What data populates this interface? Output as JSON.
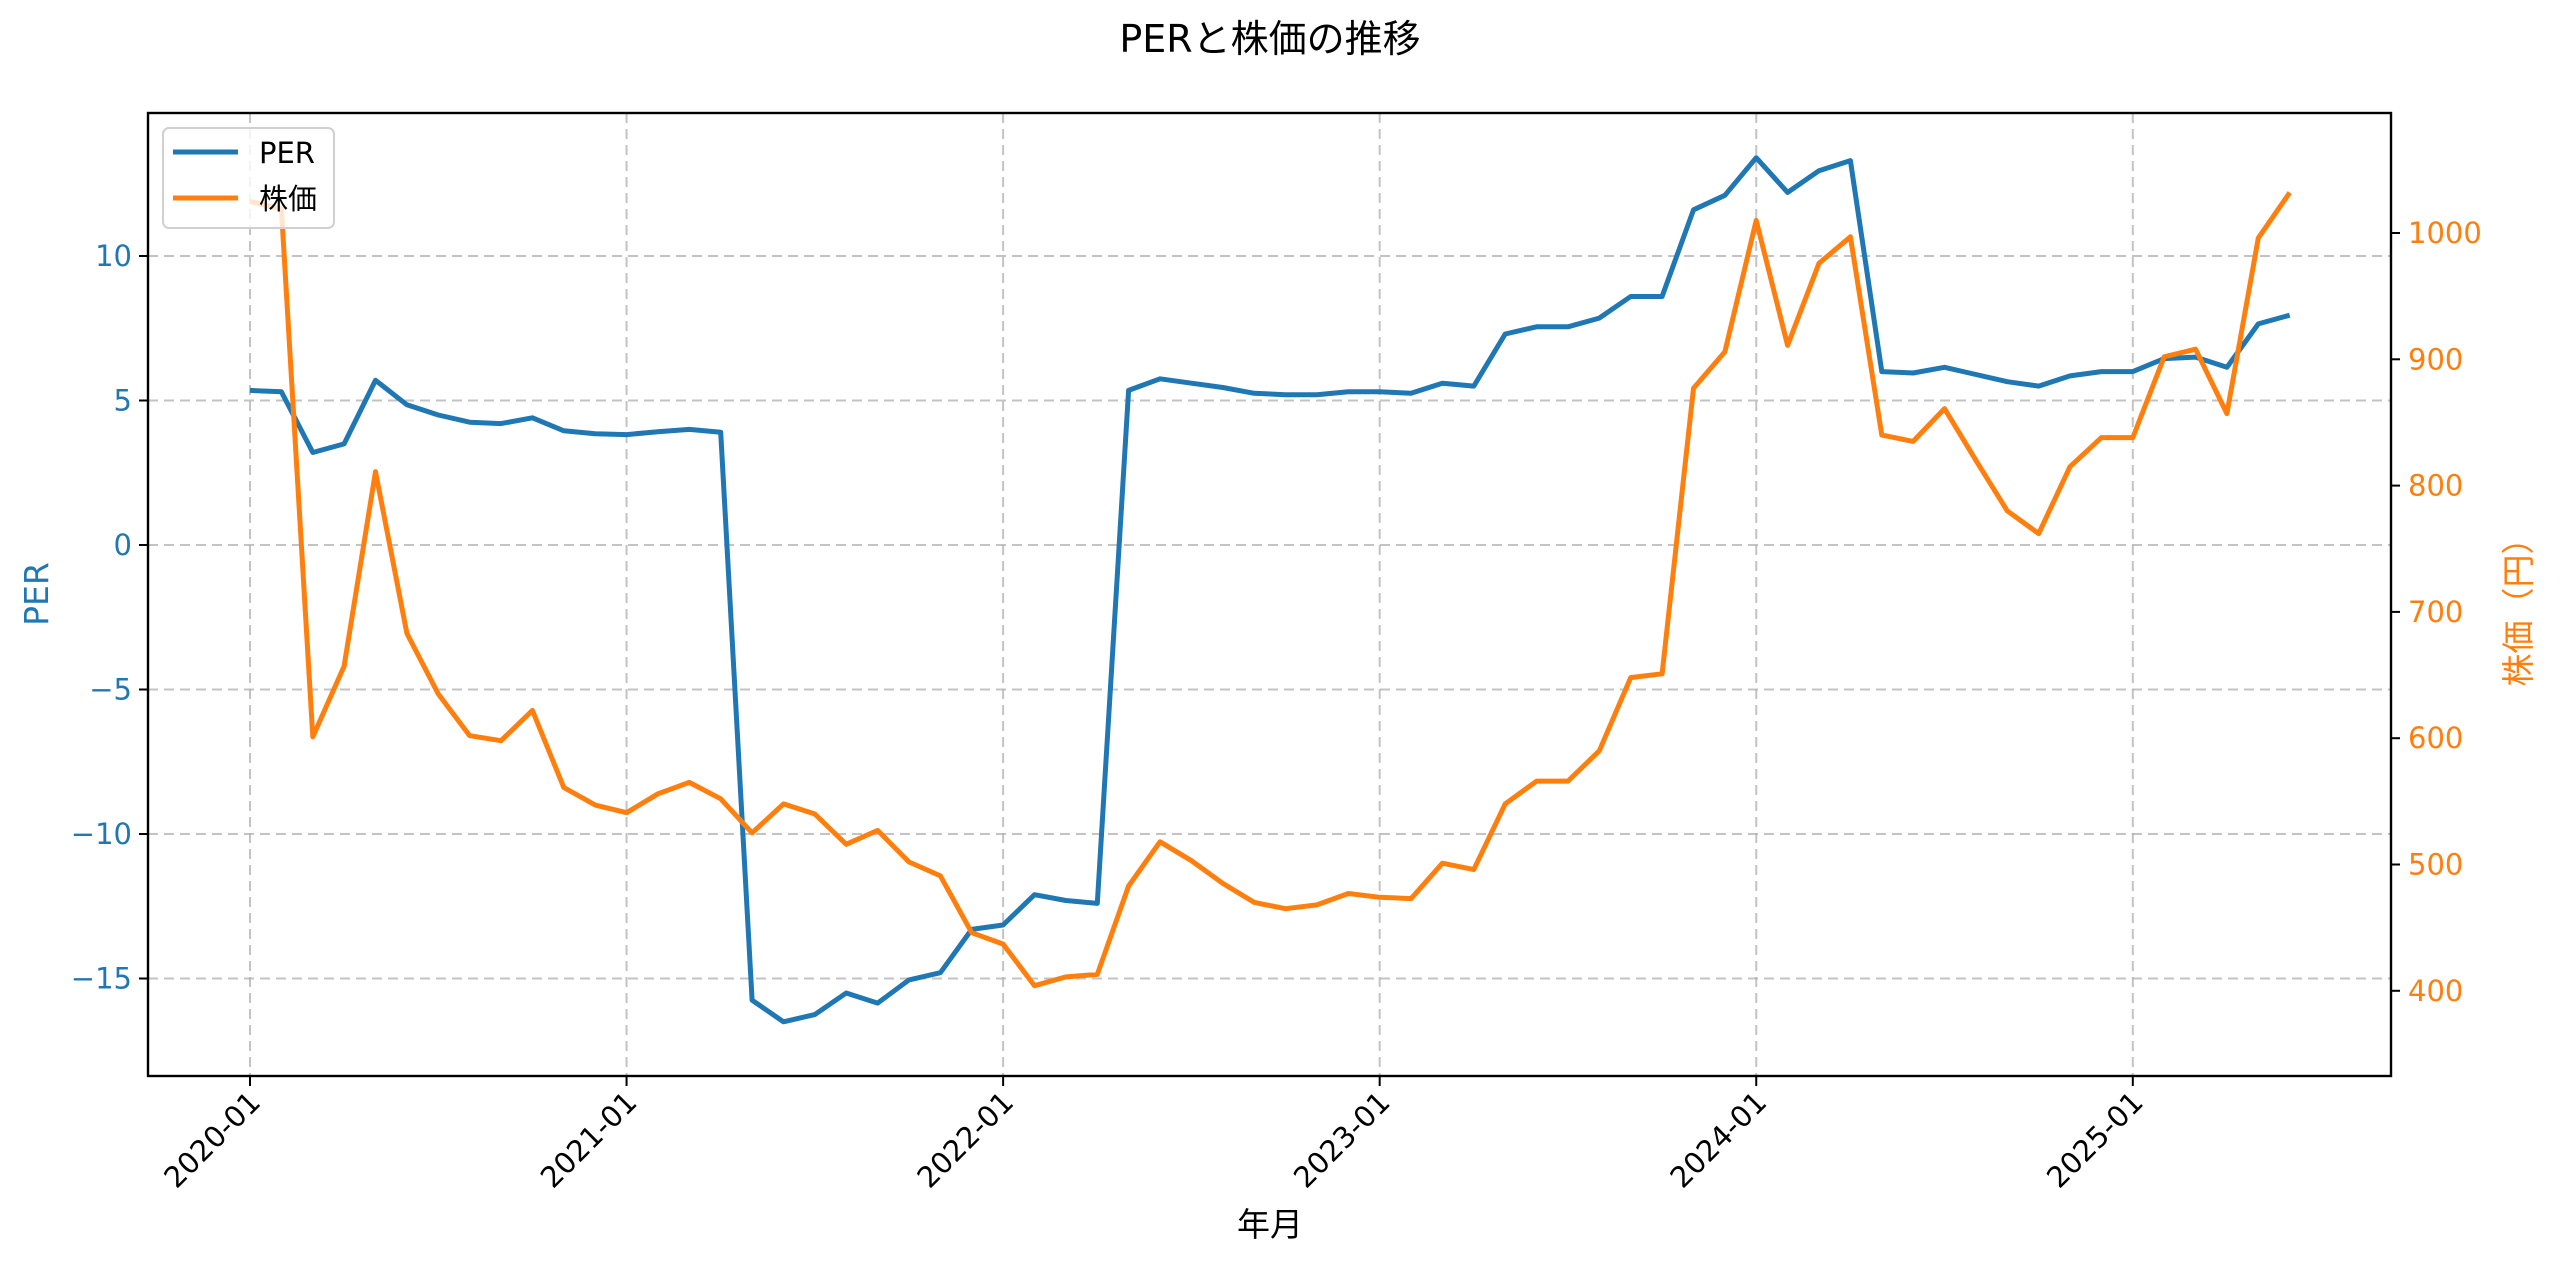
{
  "chart_data": {
    "type": "line",
    "title": "PERと株価の推移",
    "xlabel": "年月",
    "ylabel_left": "PER",
    "ylabel_right": "株価（円）",
    "x_tick_labels": [
      "2020-01",
      "2021-01",
      "2022-01",
      "2023-01",
      "2024-01",
      "2025-01"
    ],
    "y_left_ticks": [
      10,
      5,
      0,
      -5,
      -10,
      -15
    ],
    "y_left_tick_labels": [
      "10",
      "5",
      "0",
      "−5",
      "−10",
      "−15"
    ],
    "y_right_ticks": [
      1000,
      900,
      800,
      700,
      600,
      500,
      400
    ],
    "y_right_tick_labels": [
      "1000",
      "900",
      "800",
      "700",
      "600",
      "500",
      "400"
    ],
    "y_left_range": [
      -18.2,
      14.8
    ],
    "y_right_range": [
      333,
      1095
    ],
    "grid": true,
    "legend_position": "upper left",
    "x": [
      "2020-01",
      "2020-02",
      "2020-03",
      "2020-04",
      "2020-05",
      "2020-06",
      "2020-07",
      "2020-08",
      "2020-09",
      "2020-10",
      "2020-11",
      "2020-12",
      "2021-01",
      "2021-02",
      "2021-03",
      "2021-04",
      "2021-05",
      "2021-06",
      "2021-07",
      "2021-08",
      "2021-09",
      "2021-10",
      "2021-11",
      "2021-12",
      "2022-01",
      "2022-02",
      "2022-03",
      "2022-04",
      "2022-05",
      "2022-06",
      "2022-07",
      "2022-08",
      "2022-09",
      "2022-10",
      "2022-11",
      "2022-12",
      "2023-01",
      "2023-02",
      "2023-03",
      "2023-04",
      "2023-05",
      "2023-06",
      "2023-07",
      "2023-08",
      "2023-09",
      "2023-10",
      "2023-11",
      "2023-12",
      "2024-01",
      "2024-02",
      "2024-03",
      "2024-04",
      "2024-05",
      "2024-06",
      "2024-07",
      "2024-08",
      "2024-09",
      "2024-10",
      "2024-11",
      "2024-12",
      "2025-01",
      "2025-02",
      "2025-03",
      "2025-04",
      "2025-05",
      "2025-06"
    ],
    "series": [
      {
        "name": "PER",
        "axis": "left",
        "color": "#1f77b4",
        "values": [
          5.35,
          5.3,
          3.2,
          3.5,
          5.7,
          4.85,
          4.5,
          4.25,
          4.2,
          4.4,
          3.95,
          3.85,
          3.82,
          3.92,
          4.0,
          3.9,
          -15.75,
          -16.5,
          -16.25,
          -15.5,
          -15.85,
          -15.05,
          -14.8,
          -13.3,
          -13.15,
          -12.1,
          -12.3,
          -12.4,
          5.35,
          5.75,
          5.6,
          5.45,
          5.25,
          5.2,
          5.2,
          5.3,
          5.3,
          5.25,
          5.6,
          5.5,
          7.3,
          7.55,
          7.55,
          7.85,
          8.6,
          8.6,
          11.6,
          12.1,
          13.4,
          12.2,
          12.95,
          13.3,
          6.0,
          5.95,
          6.15,
          5.9,
          5.65,
          5.5,
          5.85,
          6.0,
          6.0,
          6.45,
          6.5,
          6.15,
          7.65,
          7.95
        ]
      },
      {
        "name": "株価",
        "axis": "right",
        "color": "#ff7f0e",
        "values": [
          1025,
          1019,
          601,
          657,
          811,
          683,
          635,
          602,
          598,
          622,
          561,
          547,
          541,
          556,
          565,
          552,
          525,
          548,
          540,
          516,
          527,
          502,
          491,
          446,
          437,
          404,
          411,
          413,
          483,
          518,
          503,
          485,
          470,
          465,
          468,
          477,
          474,
          473,
          501,
          496,
          548,
          566,
          566,
          590,
          648,
          651,
          877,
          906,
          1010,
          911,
          976,
          997,
          840,
          835,
          861,
          820,
          780,
          762,
          815,
          838,
          838,
          902,
          908,
          857,
          996,
          1032
        ]
      }
    ]
  },
  "legend": {
    "items": [
      {
        "label": "PER",
        "color": "#1f77b4"
      },
      {
        "label": "株価",
        "color": "#ff7f0e"
      }
    ]
  }
}
